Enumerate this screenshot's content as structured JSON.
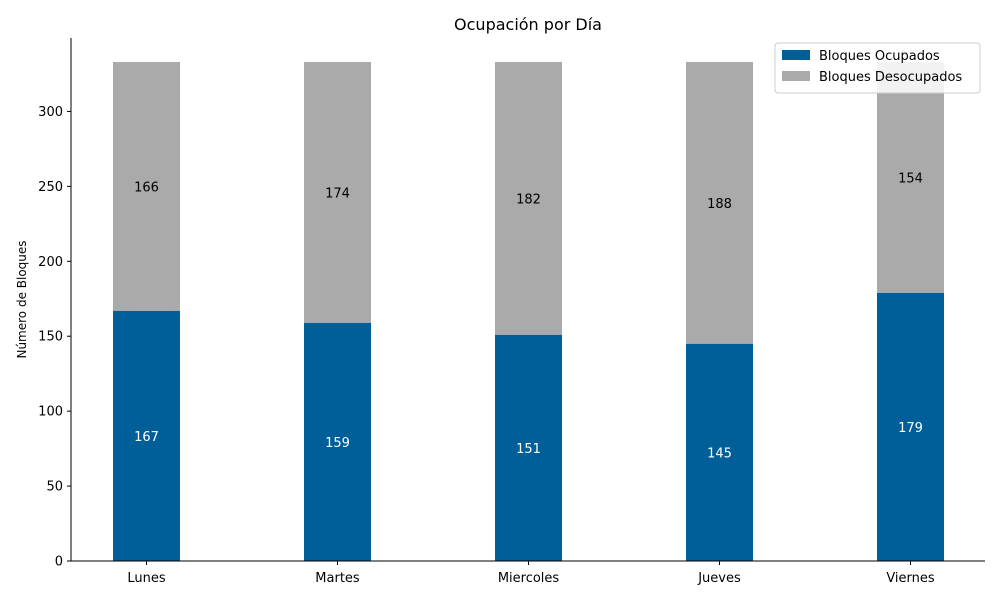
{
  "chart_data": {
    "type": "bar",
    "stacked": true,
    "title": "Ocupación por Día",
    "xlabel": "",
    "ylabel": "Número de Bloques",
    "categories": [
      "Lunes",
      "Martes",
      "Miercoles",
      "Jueves",
      "Viernes"
    ],
    "series": [
      {
        "name": "Bloques Ocupados",
        "values": [
          167,
          159,
          151,
          145,
          179
        ],
        "color": "#005f99",
        "label_color": "#ffffff"
      },
      {
        "name": "Bloques Desocupados",
        "values": [
          166,
          174,
          182,
          188,
          154
        ],
        "color": "#aaaaaa",
        "label_color": "#000000"
      }
    ],
    "ylim": [
      0,
      349
    ],
    "yticks": [
      0,
      50,
      100,
      150,
      200,
      250,
      300
    ],
    "grid": false,
    "legend_position": "top-right"
  }
}
